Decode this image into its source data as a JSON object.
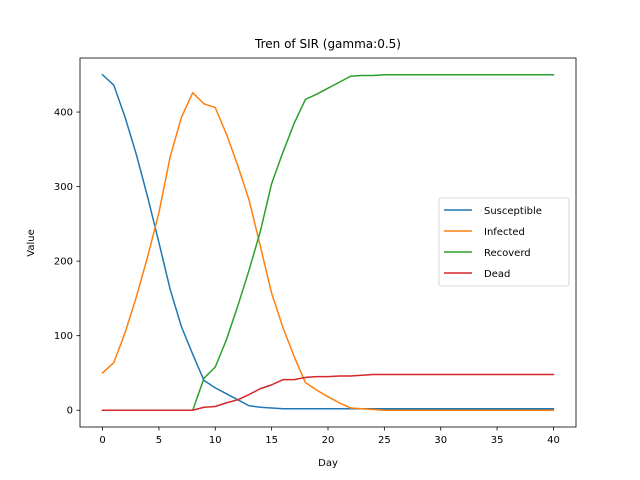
{
  "chart_data": {
    "type": "line",
    "title": "Tren of SIR (gamma:0.5)",
    "xlabel": "Day",
    "ylabel": "Value",
    "xlim": [
      -2,
      42
    ],
    "ylim": [
      -22.5,
      472.5
    ],
    "xticks": [
      0,
      5,
      10,
      15,
      20,
      25,
      30,
      35,
      40
    ],
    "yticks": [
      0,
      100,
      200,
      300,
      400
    ],
    "grid": false,
    "legend_position": "center-right",
    "x": [
      0,
      1,
      2,
      3,
      4,
      5,
      6,
      7,
      8,
      9,
      10,
      11,
      12,
      13,
      14,
      15,
      16,
      17,
      18,
      19,
      20,
      21,
      22,
      23,
      24,
      25,
      26,
      27,
      28,
      29,
      30,
      31,
      32,
      33,
      34,
      35,
      36,
      37,
      38,
      39,
      40
    ],
    "series": [
      {
        "name": "Susceptible",
        "color": "#1f77b4",
        "values": [
          450,
          436,
          393,
          343,
          286,
          225,
          162,
          112,
          75,
          40,
          30,
          22,
          14,
          6,
          4,
          3,
          2,
          2,
          2,
          2,
          2,
          2,
          2,
          2,
          2,
          2,
          2,
          2,
          2,
          2,
          2,
          2,
          2,
          2,
          2,
          2,
          2,
          2,
          2,
          2,
          2
        ]
      },
      {
        "name": "Infected",
        "color": "#ff7f0e",
        "values": [
          50,
          64,
          104,
          152,
          206,
          265,
          340,
          393,
          426,
          411,
          406,
          370,
          328,
          282,
          220,
          157,
          111,
          72,
          37,
          27,
          18,
          10,
          3,
          2,
          1,
          0,
          0,
          0,
          0,
          0,
          0,
          0,
          0,
          0,
          0,
          0,
          0,
          0,
          0,
          0,
          0
        ]
      },
      {
        "name": "Recoverd",
        "color": "#2ca02c",
        "values": [
          0,
          0,
          0,
          0,
          0,
          0,
          0,
          0,
          0,
          43,
          58,
          95,
          140,
          188,
          240,
          304,
          346,
          385,
          417,
          424,
          432,
          440,
          448,
          449,
          449,
          450,
          450,
          450,
          450,
          450,
          450,
          450,
          450,
          450,
          450,
          450,
          450,
          450,
          450,
          450,
          450
        ]
      },
      {
        "name": "Dead",
        "color": "#d62728",
        "values": [
          0,
          0,
          0,
          0,
          0,
          0,
          0,
          0,
          0,
          4,
          5,
          10,
          14,
          21,
          29,
          34,
          41,
          41,
          44,
          45,
          45,
          46,
          46,
          47,
          48,
          48,
          48,
          48,
          48,
          48,
          48,
          48,
          48,
          48,
          48,
          48,
          48,
          48,
          48,
          48,
          48
        ]
      }
    ]
  }
}
